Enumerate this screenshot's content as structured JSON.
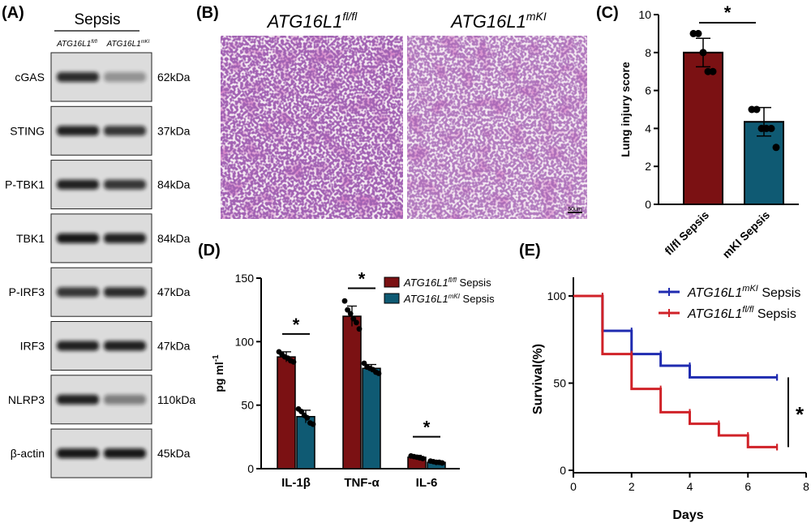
{
  "panels": {
    "A": "(A)",
    "B": "(B)",
    "C": "(C)",
    "D": "(D)",
    "E": "(E)"
  },
  "blot": {
    "group": "Sepsis",
    "lane1": {
      "gene": "ATG16L1",
      "sup": "fl/fl"
    },
    "lane2": {
      "gene": "ATG16L1",
      "sup": "mKI"
    },
    "rows": [
      {
        "protein": "cGAS",
        "size": "62kDa",
        "i1": 0.85,
        "i2": 0.35
      },
      {
        "protein": "STING",
        "size": "37kDa",
        "i1": 0.9,
        "i2": 0.8
      },
      {
        "protein": "P-TBK1",
        "size": "84kDa",
        "i1": 0.9,
        "i2": 0.8
      },
      {
        "protein": "TBK1",
        "size": "84kDa",
        "i1": 0.95,
        "i2": 0.9
      },
      {
        "protein": "P-IRF3",
        "size": "47kDa",
        "i1": 0.8,
        "i2": 0.85
      },
      {
        "protein": "IRF3",
        "size": "47kDa",
        "i1": 0.9,
        "i2": 0.9
      },
      {
        "protein": "NLRP3",
        "size": "110kDa",
        "i1": 0.9,
        "i2": 0.45
      },
      {
        "protein": "β-actin",
        "size": "45kDa",
        "i1": 0.95,
        "i2": 0.95
      }
    ]
  },
  "histology": {
    "left": {
      "gene": "ATG16L1",
      "sup": "fl/fl"
    },
    "right": {
      "gene": "ATG16L1",
      "sup": "mKI"
    },
    "scalebar": "50um"
  },
  "chart_data": [
    {
      "panel": "C",
      "type": "bar",
      "ylabel": "Lung injury score",
      "ylim": [
        0,
        10
      ],
      "yticks": [
        0,
        2,
        4,
        6,
        8,
        10
      ],
      "categories": [
        "fl/fl Sepsis",
        "mKI Sepsis"
      ],
      "values": [
        8.0,
        4.35
      ],
      "errors": [
        0.75,
        0.75
      ],
      "points": [
        [
          9.0,
          9.0,
          8.0,
          7.0,
          7.0
        ],
        [
          5.0,
          5.0,
          4.0,
          4.0,
          4.0,
          3.0
        ]
      ],
      "colors": [
        "#7b1113",
        "#0f5a73"
      ],
      "significance": "*"
    },
    {
      "panel": "D",
      "type": "bar",
      "ylabel": "pg ml",
      "ylabel_sup": "-1",
      "ylim": [
        0,
        150
      ],
      "yticks": [
        0,
        50,
        100,
        150
      ],
      "categories": [
        "IL-1β",
        "TNF-α",
        "IL-6"
      ],
      "series": [
        {
          "name": "Sepsis",
          "gene": "ATG16L1",
          "sup": "fl/fl",
          "color": "#7b1113",
          "values": [
            88,
            120,
            9
          ],
          "errors": [
            4,
            8,
            1.5
          ],
          "points": [
            [
              92,
              90,
              88,
              87,
              85,
              84
            ],
            [
              132,
              125,
              122,
              118,
              115,
              110
            ],
            [
              10,
              9.5,
              9,
              8.5,
              8
            ]
          ]
        },
        {
          "name": "Sepsis",
          "gene": "ATG16L1",
          "sup": "mKI",
          "color": "#0f5a73",
          "values": [
            41,
            79,
            5
          ],
          "errors": [
            5,
            3,
            1
          ],
          "points": [
            [
              47,
              45,
              42,
              40,
              36,
              35
            ],
            [
              83,
              80,
              79,
              78,
              76,
              75
            ],
            [
              6,
              5.5,
              5,
              5,
              4.5
            ]
          ]
        }
      ],
      "significance": [
        "*",
        "*",
        "*"
      ]
    },
    {
      "panel": "E",
      "type": "line",
      "xlabel": "Days",
      "ylabel": "Survival(%)",
      "xlim": [
        0,
        8
      ],
      "xticks": [
        0,
        2,
        4,
        6,
        8
      ],
      "ylim": [
        0,
        100
      ],
      "yticks": [
        0,
        50,
        100
      ],
      "series": [
        {
          "name": "Sepsis",
          "gene": "ATG16L1",
          "sup": "mKI",
          "color": "#1f2bb0",
          "steps": [
            [
              0,
              100
            ],
            [
              1,
              80
            ],
            [
              2,
              66.7
            ],
            [
              3,
              60
            ],
            [
              4,
              53.3
            ],
            [
              7,
              53.3
            ]
          ]
        },
        {
          "name": "Sepsis",
          "gene": "ATG16L1",
          "sup": "fl/fl",
          "color": "#d02228",
          "steps": [
            [
              0,
              100
            ],
            [
              1,
              66.7
            ],
            [
              2,
              46.7
            ],
            [
              3,
              33.3
            ],
            [
              4,
              26.7
            ],
            [
              5,
              20
            ],
            [
              6,
              13.3
            ],
            [
              7,
              13.3
            ]
          ]
        }
      ],
      "significance": "*"
    }
  ]
}
